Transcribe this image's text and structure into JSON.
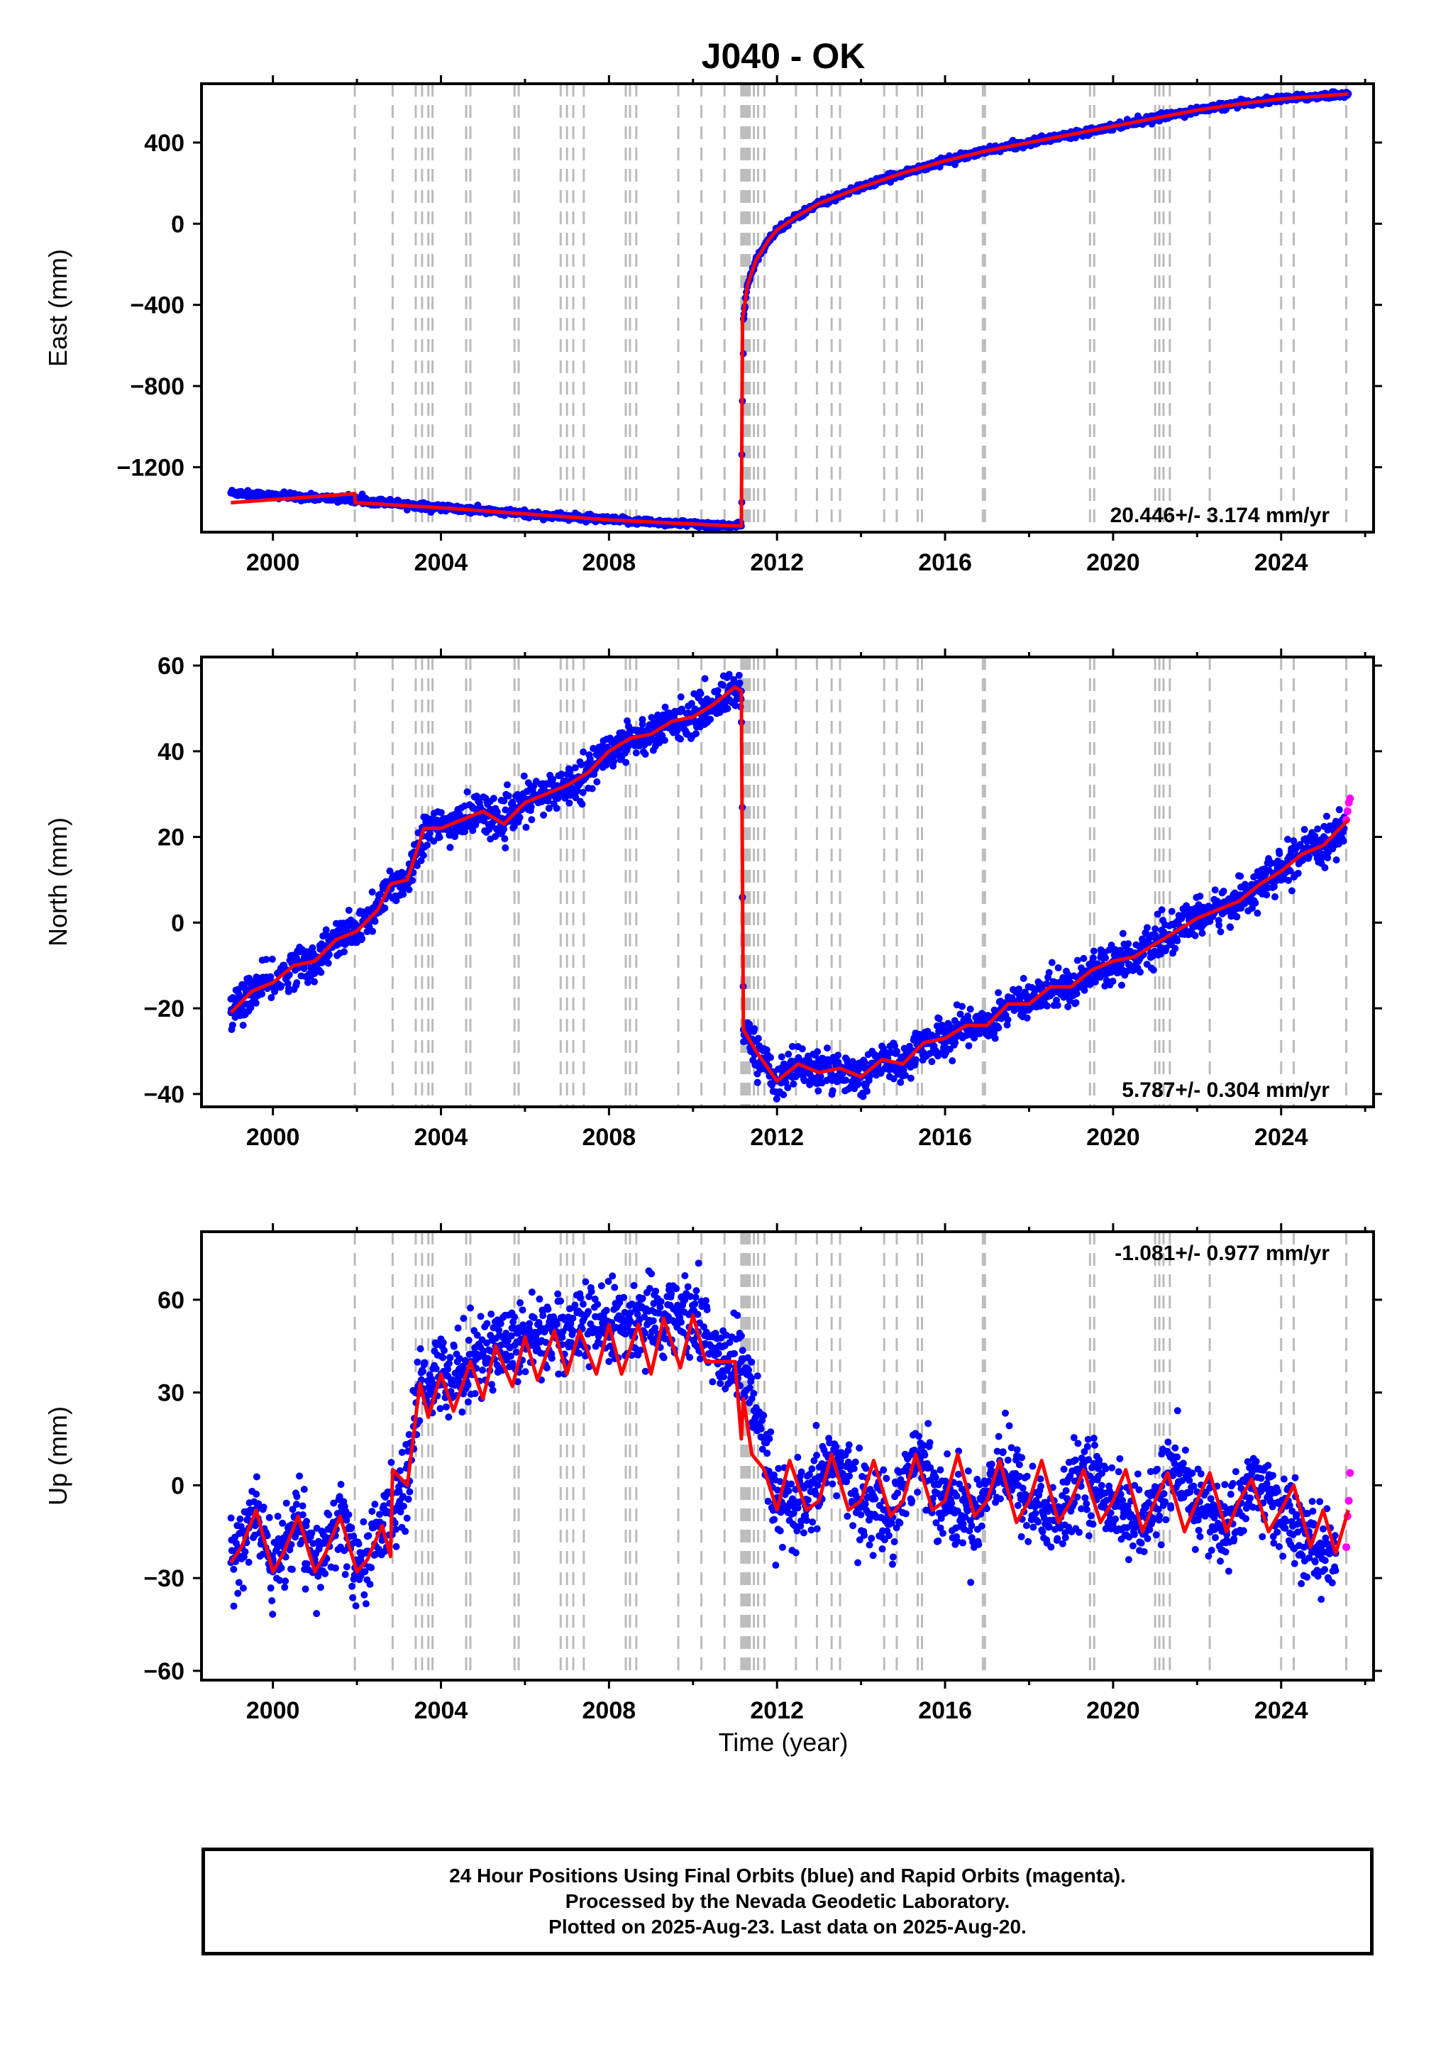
{
  "title": "J040 - OK",
  "xlabel": "Time (year)",
  "colors": {
    "final_orbits": "#0000ff",
    "rapid_orbits": "#ff00ff",
    "model": "#ff0000",
    "event_lines": "#bbbbbb"
  },
  "footer": {
    "line1": "24 Hour Positions Using Final Orbits (blue) and Rapid Orbits (magenta).",
    "line2": "Processed by the Nevada Geodetic Laboratory.",
    "line3": "Plotted on 2025-Aug-23. Last data on 2025-Aug-20."
  },
  "chart_data": [
    {
      "type": "scatter",
      "panel": "east",
      "title": "J040 - OK",
      "ylabel": "East (mm)",
      "rate_text": "20.446+/- 3.174 mm/yr",
      "xlim": [
        1998.3,
        2026.2
      ],
      "ylim": [
        -1520,
        690
      ],
      "xticks": [
        2000,
        2004,
        2008,
        2012,
        2016,
        2020,
        2024
      ],
      "xticklabels": [
        "2000",
        "2004",
        "2008",
        "2012",
        "2016",
        "2020",
        "2024"
      ],
      "yticks": [
        -1200,
        -800,
        -400,
        0,
        400
      ],
      "yticklabels": [
        "−1200",
        "−800",
        "−400",
        "0",
        "400"
      ],
      "series": [
        {
          "role": "model",
          "x": [
            1999.0,
            2000.0,
            2001.0,
            2001.95,
            2001.96,
            2002.8,
            2004.0,
            2006.0,
            2008.0,
            2009.5,
            2010.5,
            2011.15,
            2011.18,
            2011.3,
            2011.5,
            2011.8,
            2012.0,
            2012.5,
            2013.0,
            2014.0,
            2015.0,
            2016.0,
            2017.0,
            2018.0,
            2019.0,
            2020.0,
            2021.0,
            2022.0,
            2023.0,
            2024.0,
            2025.0,
            2025.6
          ],
          "y": [
            -1375,
            -1360,
            -1345,
            -1330,
            -1375,
            -1385,
            -1400,
            -1430,
            -1460,
            -1475,
            -1485,
            -1490,
            -470,
            -300,
            -180,
            -80,
            -30,
            40,
            100,
            180,
            250,
            310,
            360,
            400,
            440,
            480,
            520,
            560,
            590,
            615,
            630,
            640
          ]
        },
        {
          "role": "final_orbits",
          "x": [
            1999.0,
            2000.0,
            2001.0,
            2001.95,
            2002.8,
            2004.0,
            2006.0,
            2008.0,
            2009.5,
            2010.5,
            2011.15,
            2011.2,
            2011.3,
            2011.5,
            2011.8,
            2012.0,
            2012.5,
            2013.0,
            2014.0,
            2015.0,
            2016.0,
            2017.0,
            2018.0,
            2019.0,
            2020.0,
            2021.0,
            2022.0,
            2023.0,
            2024.0,
            2025.0,
            2025.6
          ],
          "y": [
            -1325,
            -1340,
            -1350,
            -1360,
            -1375,
            -1400,
            -1430,
            -1460,
            -1475,
            -1485,
            -1490,
            -470,
            -300,
            -180,
            -80,
            -30,
            40,
            100,
            180,
            250,
            310,
            360,
            400,
            440,
            480,
            520,
            560,
            590,
            615,
            630,
            640
          ]
        }
      ]
    },
    {
      "type": "scatter",
      "panel": "north",
      "ylabel": "North (mm)",
      "rate_text": "5.787+/- 0.304 mm/yr",
      "xlim": [
        1998.3,
        2026.2
      ],
      "ylim": [
        -43,
        62
      ],
      "xticks": [
        2000,
        2004,
        2008,
        2012,
        2016,
        2020,
        2024
      ],
      "xticklabels": [
        "2000",
        "2004",
        "2008",
        "2012",
        "2016",
        "2020",
        "2024"
      ],
      "yticks": [
        -40,
        -20,
        0,
        20,
        40,
        60
      ],
      "yticklabels": [
        "−40",
        "−20",
        "0",
        "20",
        "40",
        "60"
      ],
      "series": [
        {
          "role": "model",
          "x": [
            1999.0,
            1999.5,
            2000.0,
            2000.5,
            2001.0,
            2001.5,
            2002.0,
            2002.5,
            2002.8,
            2003.2,
            2003.6,
            2004.0,
            2004.5,
            2005.0,
            2005.5,
            2006.0,
            2006.5,
            2007.0,
            2007.5,
            2008.0,
            2008.5,
            2009.0,
            2009.5,
            2010.0,
            2010.5,
            2011.0,
            2011.15,
            2011.2,
            2011.5,
            2012.0,
            2012.5,
            2013.0,
            2013.5,
            2014.0,
            2014.5,
            2015.0,
            2015.5,
            2016.0,
            2016.5,
            2017.0,
            2017.5,
            2018.0,
            2018.5,
            2019.0,
            2019.5,
            2020.0,
            2020.5,
            2021.0,
            2021.5,
            2022.0,
            2022.5,
            2023.0,
            2023.5,
            2024.0,
            2024.5,
            2025.0,
            2025.6
          ],
          "y": [
            -21,
            -16,
            -14,
            -10,
            -9,
            -4,
            -2,
            3,
            9,
            10,
            22,
            22,
            24,
            26,
            23,
            28,
            30,
            32,
            35,
            40,
            43,
            44,
            47,
            48,
            51,
            55,
            54,
            -25,
            -30,
            -37,
            -33,
            -35,
            -34,
            -36,
            -32,
            -33,
            -28,
            -27,
            -24,
            -24,
            -19,
            -19,
            -15,
            -15,
            -11,
            -9,
            -8,
            -5,
            -2,
            1,
            3,
            5,
            9,
            12,
            16,
            18,
            24
          ]
        },
        {
          "role": "final_orbits",
          "x": [
            1999.0,
            1999.5,
            2000.0,
            2000.5,
            2001.0,
            2001.5,
            2002.0,
            2002.5,
            2002.8,
            2003.2,
            2003.6,
            2004.0,
            2004.5,
            2005.0,
            2005.5,
            2006.0,
            2006.5,
            2007.0,
            2007.5,
            2008.0,
            2008.5,
            2009.0,
            2009.5,
            2010.0,
            2010.5,
            2011.0,
            2011.15,
            2011.2,
            2011.5,
            2012.0,
            2012.5,
            2013.0,
            2013.5,
            2014.0,
            2014.5,
            2015.0,
            2015.5,
            2016.0,
            2016.5,
            2017.0,
            2017.5,
            2018.0,
            2018.5,
            2019.0,
            2019.5,
            2020.0,
            2020.5,
            2021.0,
            2021.5,
            2022.0,
            2022.5,
            2023.0,
            2023.5,
            2024.0,
            2024.5,
            2025.0,
            2025.5
          ],
          "y": [
            -21,
            -16,
            -14,
            -10,
            -9,
            -4,
            -2,
            3,
            9,
            10,
            22,
            22,
            24,
            26,
            23,
            28,
            30,
            32,
            35,
            40,
            43,
            44,
            47,
            48,
            51,
            55,
            54,
            -25,
            -30,
            -37,
            -33,
            -35,
            -34,
            -36,
            -32,
            -33,
            -28,
            -27,
            -24,
            -24,
            -19,
            -19,
            -15,
            -15,
            -11,
            -9,
            -8,
            -5,
            -2,
            1,
            3,
            5,
            9,
            12,
            16,
            18,
            22
          ]
        },
        {
          "role": "rapid_orbits",
          "x": [
            2025.55,
            2025.58,
            2025.61,
            2025.64
          ],
          "y": [
            24,
            26,
            28,
            29
          ]
        }
      ]
    },
    {
      "type": "scatter",
      "panel": "up",
      "ylabel": "Up (mm)",
      "rate_text": "-1.081+/- 0.977 mm/yr",
      "xlim": [
        1998.3,
        2026.2
      ],
      "ylim": [
        -63,
        82
      ],
      "xticks": [
        2000,
        2004,
        2008,
        2012,
        2016,
        2020,
        2024
      ],
      "xticklabels": [
        "2000",
        "2004",
        "2008",
        "2012",
        "2016",
        "2020",
        "2024"
      ],
      "yticks": [
        -60,
        -30,
        0,
        30,
        60
      ],
      "yticklabels": [
        "−60",
        "−30",
        "0",
        "30",
        "60"
      ],
      "series": [
        {
          "role": "model",
          "x": [
            1999.0,
            1999.25,
            1999.6,
            2000.0,
            2000.25,
            2000.6,
            2001.0,
            2001.25,
            2001.6,
            2002.0,
            2002.25,
            2002.6,
            2002.8,
            2002.85,
            2003.2,
            2003.5,
            2003.7,
            2004.0,
            2004.3,
            2004.7,
            2005.0,
            2005.3,
            2005.7,
            2006.0,
            2006.3,
            2006.7,
            2007.0,
            2007.3,
            2007.7,
            2008.0,
            2008.3,
            2008.7,
            2009.0,
            2009.3,
            2009.7,
            2010.0,
            2010.3,
            2010.7,
            2011.0,
            2011.15,
            2011.2,
            2011.4,
            2011.7,
            2012.0,
            2012.3,
            2012.7,
            2013.0,
            2013.3,
            2013.7,
            2014.0,
            2014.3,
            2014.7,
            2015.0,
            2015.3,
            2015.7,
            2016.0,
            2016.3,
            2016.7,
            2017.0,
            2017.3,
            2017.7,
            2018.0,
            2018.3,
            2018.7,
            2019.0,
            2019.3,
            2019.7,
            2020.0,
            2020.3,
            2020.7,
            2021.0,
            2021.3,
            2021.7,
            2022.0,
            2022.3,
            2022.7,
            2023.0,
            2023.3,
            2023.7,
            2024.0,
            2024.3,
            2024.7,
            2025.0,
            2025.3,
            2025.6
          ],
          "y": [
            -25,
            -20,
            -8,
            -28,
            -22,
            -10,
            -28,
            -22,
            -10,
            -28,
            -24,
            -13,
            -23,
            5,
            0,
            33,
            22,
            36,
            24,
            40,
            28,
            45,
            32,
            48,
            34,
            50,
            36,
            50,
            36,
            52,
            36,
            52,
            36,
            54,
            38,
            55,
            40,
            40,
            40,
            15,
            28,
            10,
            5,
            -8,
            8,
            -8,
            -5,
            10,
            -8,
            -5,
            8,
            -10,
            -5,
            10,
            -8,
            -5,
            10,
            -10,
            -5,
            8,
            -12,
            -5,
            8,
            -12,
            -5,
            5,
            -12,
            -5,
            5,
            -15,
            -5,
            4,
            -15,
            -5,
            4,
            -15,
            -5,
            2,
            -15,
            -8,
            0,
            -20,
            -8,
            -22,
            -8
          ]
        },
        {
          "role": "final_orbits",
          "x": [
            1999.0,
            1999.6,
            2000.0,
            2000.6,
            2001.0,
            2001.6,
            2002.0,
            2002.6,
            2003.2,
            2003.5,
            2004.0,
            2004.7,
            2005.3,
            2006.0,
            2006.7,
            2007.3,
            2008.0,
            2008.7,
            2009.3,
            2010.0,
            2010.7,
            2011.15,
            2011.4,
            2012.0,
            2012.7,
            2013.3,
            2014.0,
            2014.7,
            2015.3,
            2016.0,
            2016.7,
            2017.3,
            2018.0,
            2018.7,
            2019.3,
            2020.0,
            2020.7,
            2021.3,
            2022.0,
            2022.7,
            2023.3,
            2024.0,
            2024.7,
            2025.3
          ],
          "y": [
            -25,
            -8,
            -28,
            -10,
            -28,
            -10,
            -28,
            -13,
            0,
            33,
            36,
            40,
            45,
            48,
            50,
            50,
            52,
            52,
            54,
            55,
            40,
            40,
            28,
            -8,
            -8,
            10,
            -5,
            -10,
            10,
            -5,
            -10,
            8,
            -5,
            -12,
            5,
            -5,
            -15,
            4,
            -5,
            -15,
            2,
            -8,
            -20,
            -22
          ]
        },
        {
          "role": "rapid_orbits",
          "x": [
            2025.55,
            2025.58,
            2025.61,
            2025.64
          ],
          "y": [
            -20,
            -10,
            -5,
            4
          ]
        }
      ]
    }
  ]
}
